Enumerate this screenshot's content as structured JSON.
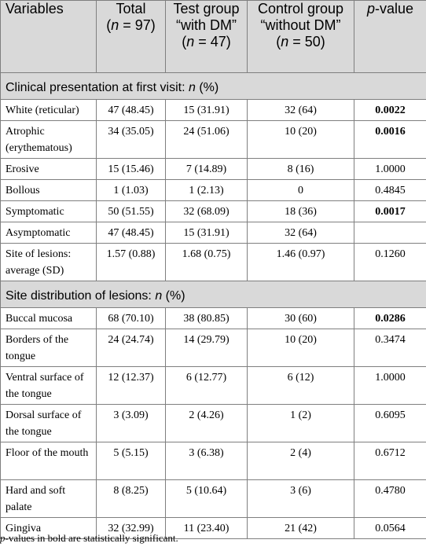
{
  "header": {
    "variables": "Variables",
    "total": "Total",
    "total_n": "(n = 97)",
    "test": "Test group “with DM”",
    "test_n": "(n = 47)",
    "control": "Control group “without DM”",
    "control_n": "(n = 50)",
    "pvalue": "p-value"
  },
  "sections": [
    {
      "title": "Clinical presentation at first visit: n (%)",
      "rows": [
        {
          "variable": "White (reticular)",
          "total": "47 (48.45)",
          "test": "15 (31.91)",
          "control": "32 (64)",
          "p": "0.0022",
          "bold": true
        },
        {
          "variable": "Atrophic (erythematous)",
          "total": "34 (35.05)",
          "test": "24 (51.06)",
          "control": "10 (20)",
          "p": "0.0016",
          "bold": true
        },
        {
          "variable": "Erosive",
          "total": "15 (15.46)",
          "test": "7 (14.89)",
          "control": "8 (16)",
          "p": "1.0000",
          "bold": false
        },
        {
          "variable": "Bollous",
          "total": "1 (1.03)",
          "test": "1 (2.13)",
          "control": "0",
          "p": "0.4845",
          "bold": false
        },
        {
          "variable": "Symptomatic",
          "total": "50 (51.55)",
          "test": "32 (68.09)",
          "control": "18 (36)",
          "p": "0.0017",
          "bold": true
        },
        {
          "variable": "Asymptomatic",
          "total": "47 (48.45)",
          "test": "15 (31.91)",
          "control": "32 (64)",
          "p": "",
          "bold": false
        },
        {
          "variable": "Site of lesions: average (SD)",
          "total": "1.57 (0.88)",
          "test": "1.68 (0.75)",
          "control": "1.46 (0.97)",
          "p": "0.1260",
          "bold": false
        }
      ]
    },
    {
      "title": "Site distribution of lesions: n (%)",
      "rows": [
        {
          "variable": "Buccal mucosa",
          "total": "68 (70.10)",
          "test": "38 (80.85)",
          "control": "30 (60)",
          "p": "0.0286",
          "bold": true
        },
        {
          "variable": "Borders of the tongue",
          "total": "24 (24.74)",
          "test": "14 (29.79)",
          "control": "10 (20)",
          "p": "0.3474",
          "bold": false
        },
        {
          "variable": "Ventral surface of the tongue",
          "total": "12 (12.37)",
          "test": "6 (12.77)",
          "control": "6 (12)",
          "p": "1.0000",
          "bold": false
        },
        {
          "variable": "Dorsal surface of the tongue",
          "total": "3 (3.09)",
          "test": "2 (4.26)",
          "control": "1 (2)",
          "p": "0.6095",
          "bold": false
        },
        {
          "variable": "Floor of the mouth",
          "total": "5 (5.15)",
          "test": "3 (6.38)",
          "control": "2 (4)",
          "p": "0.6712",
          "bold": false
        },
        {
          "variable": "Hard and soft palate",
          "total": "8 (8.25)",
          "test": "5 (10.64)",
          "control": "3 (6)",
          "p": "0.4780",
          "bold": false
        },
        {
          "variable": "Gingiva",
          "total": "32 (32.99)",
          "test": "11 (23.40)",
          "control": "21 (42)",
          "p": "0.0564",
          "bold": false
        }
      ]
    }
  ],
  "footnote": "p-values in bold are statistically significant."
}
